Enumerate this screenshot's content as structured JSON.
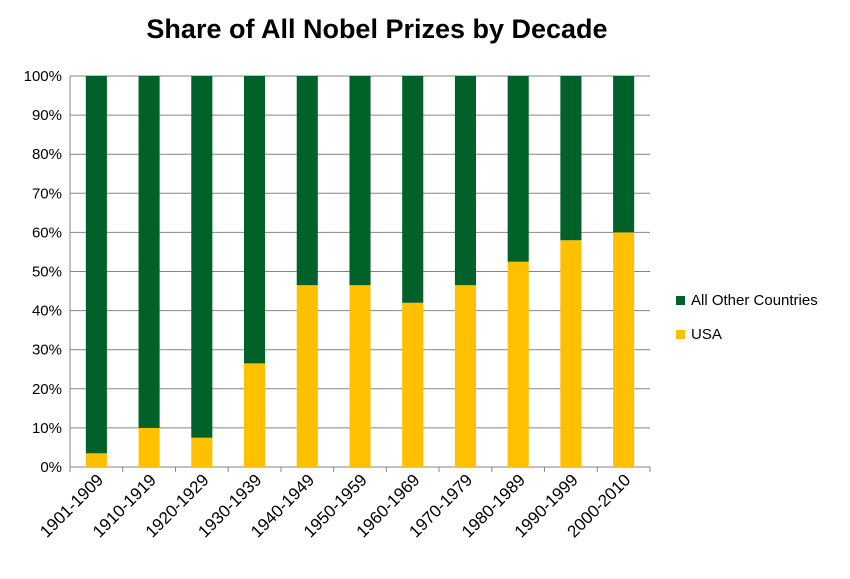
{
  "chart_data": {
    "type": "bar",
    "stacked": true,
    "title": "Share of All Nobel Prizes by Decade",
    "categories": [
      "1901-1909",
      "1910-1919",
      "1920-1929",
      "1930-1939",
      "1940-1949",
      "1950-1959",
      "1960-1969",
      "1970-1979",
      "1980-1989",
      "1990-1999",
      "2000-2010"
    ],
    "series": [
      {
        "name": "USA",
        "color": "#FFC000",
        "values": [
          3.5,
          10,
          7.5,
          26.5,
          46.5,
          46.5,
          42,
          46.5,
          52.5,
          58,
          60
        ]
      },
      {
        "name": "All Other Countries",
        "color": "#006228",
        "values": [
          96.5,
          90,
          92.5,
          73.5,
          53.5,
          53.5,
          58,
          53.5,
          47.5,
          42,
          40
        ]
      }
    ],
    "ylim": [
      0,
      100
    ],
    "yticks": [
      "0%",
      "10%",
      "20%",
      "30%",
      "40%",
      "50%",
      "60%",
      "70%",
      "80%",
      "90%",
      "100%"
    ],
    "grid": true,
    "legend_position": "right",
    "legend_order": [
      "All Other Countries",
      "USA"
    ]
  }
}
